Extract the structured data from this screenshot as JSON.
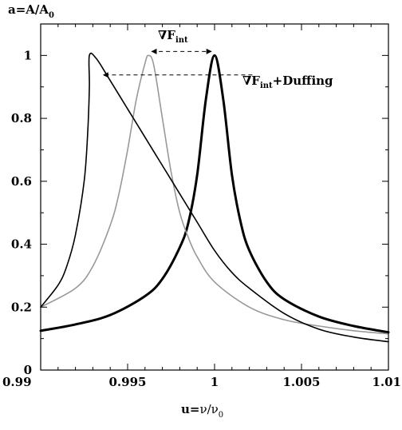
{
  "chart_data": {
    "type": "line",
    "ylabel": {
      "main": "a=A/A",
      "sub": "0"
    },
    "xlabel": {
      "main": "u=",
      "nu": "ν/ν",
      "sub": "0"
    },
    "xlim": [
      0.99,
      1.01
    ],
    "ylim": [
      0,
      1.1
    ],
    "x_ticks": [
      0.99,
      0.995,
      1,
      1.005,
      1.01
    ],
    "x_tick_labels": [
      "0.99",
      "0.995",
      "1",
      "1.005",
      "1.01"
    ],
    "y_ticks": [
      0,
      0.2,
      0.4,
      0.6,
      0.8,
      1
    ],
    "y_tick_labels": [
      "0",
      "0.2",
      "0.4",
      "0.6",
      "0.8",
      "1"
    ],
    "grid": false,
    "series": [
      {
        "color": "#000000",
        "linewidth": "thick",
        "points": [
          [
            0.99,
            0.125
          ],
          [
            0.992,
            0.145
          ],
          [
            0.994,
            0.175
          ],
          [
            0.996,
            0.235
          ],
          [
            0.997,
            0.29
          ],
          [
            0.998,
            0.39
          ],
          [
            0.9985,
            0.47
          ],
          [
            0.999,
            0.62
          ],
          [
            0.9995,
            0.86
          ],
          [
            1.0,
            1.0
          ],
          [
            1.0005,
            0.86
          ],
          [
            1.001,
            0.62
          ],
          [
            1.0015,
            0.47
          ],
          [
            1.002,
            0.38
          ],
          [
            1.003,
            0.28
          ],
          [
            1.004,
            0.225
          ],
          [
            1.006,
            0.17
          ],
          [
            1.008,
            0.14
          ],
          [
            1.01,
            0.12
          ]
        ]
      },
      {
        "color": "#999999",
        "linewidth": "normal",
        "points": [
          [
            0.99,
            0.2
          ],
          [
            0.992,
            0.26
          ],
          [
            0.993,
            0.33
          ],
          [
            0.994,
            0.46
          ],
          [
            0.9945,
            0.56
          ],
          [
            0.995,
            0.7
          ],
          [
            0.9955,
            0.86
          ],
          [
            0.996,
            0.975
          ],
          [
            0.9962,
            1.0
          ],
          [
            0.9965,
            0.97
          ],
          [
            0.997,
            0.8
          ],
          [
            0.9975,
            0.63
          ],
          [
            0.998,
            0.5
          ],
          [
            0.9985,
            0.42
          ],
          [
            0.999,
            0.36
          ],
          [
            1.0,
            0.28
          ],
          [
            1.002,
            0.2
          ],
          [
            1.004,
            0.16
          ],
          [
            1.006,
            0.14
          ],
          [
            1.008,
            0.125
          ],
          [
            1.01,
            0.115
          ]
        ]
      },
      {
        "color": "#000000",
        "linewidth": "normal",
        "points": [
          [
            0.99,
            0.2
          ],
          [
            0.991,
            0.27
          ],
          [
            0.9915,
            0.33
          ],
          [
            0.992,
            0.43
          ],
          [
            0.9925,
            0.6
          ],
          [
            0.9927,
            0.75
          ],
          [
            0.9928,
            0.9
          ],
          [
            0.9928,
            1.0
          ],
          [
            0.9932,
            0.99
          ],
          [
            0.994,
            0.92
          ],
          [
            0.995,
            0.83
          ],
          [
            0.996,
            0.74
          ],
          [
            0.997,
            0.65
          ],
          [
            0.998,
            0.56
          ],
          [
            0.999,
            0.47
          ],
          [
            1.0,
            0.38
          ],
          [
            1.001,
            0.31
          ],
          [
            1.002,
            0.26
          ],
          [
            1.004,
            0.18
          ],
          [
            1.006,
            0.13
          ],
          [
            1.008,
            0.105
          ],
          [
            1.01,
            0.09
          ]
        ]
      }
    ],
    "annotations": [
      {
        "label_main": "∇F",
        "label_sub": "int",
        "label_suffix": "",
        "arrow_from": [
          0.9962,
          1.0
        ],
        "arrow_to": [
          1.0,
          1.0
        ],
        "arrow_style": "double-headed-dashed"
      },
      {
        "label_main": "∇F",
        "label_sub": "int",
        "label_suffix": "+Duffing",
        "arrow_from": [
          1.0008,
          0.943
        ],
        "arrow_to": [
          0.9936,
          0.943
        ],
        "arrow_style": "dashed-arrow"
      }
    ]
  }
}
